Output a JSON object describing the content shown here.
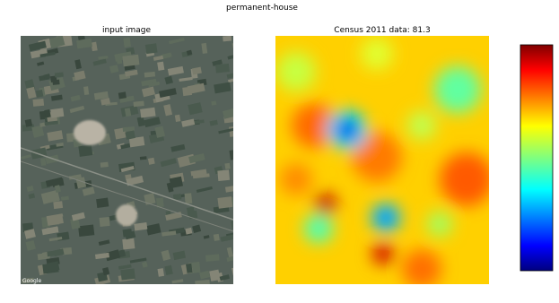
{
  "title": "permanent-house",
  "panels": [
    {
      "title": "input image",
      "watermark": "Google"
    },
    {
      "title": "Census 2011 data: 81.3"
    }
  ]
}
